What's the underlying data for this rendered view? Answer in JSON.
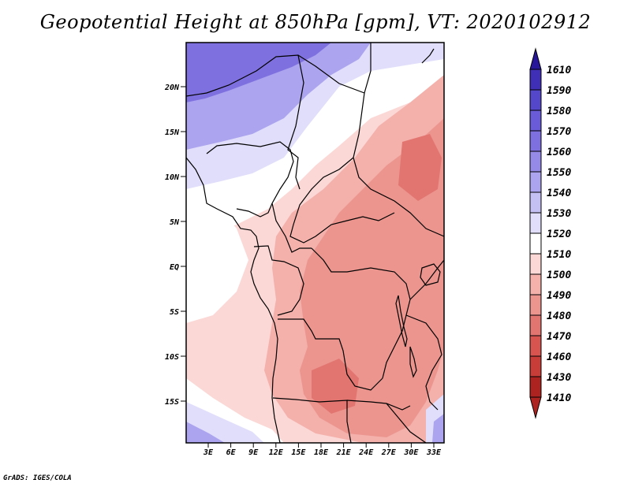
{
  "title": "Geopotential Height at 850hPa [gpm], VT: 2020102912",
  "credit": "GrADS: IGES/COLA",
  "map": {
    "lat_ticks": [
      "20N",
      "15N",
      "10N",
      "5N",
      "EQ",
      "5S",
      "10S",
      "15S"
    ],
    "lon_ticks": [
      "3E",
      "6E",
      "9E",
      "12E",
      "15E",
      "18E",
      "21E",
      "24E",
      "27E",
      "30E",
      "33E"
    ]
  },
  "colorbar": {
    "levels": [
      "1610",
      "1590",
      "1580",
      "1570",
      "1560",
      "1550",
      "1540",
      "1530",
      "1520",
      "1510",
      "1500",
      "1490",
      "1480",
      "1470",
      "1460",
      "1430",
      "1410"
    ],
    "colors": [
      "#28169a",
      "#3f2fb6",
      "#5447c9",
      "#6a5cd8",
      "#7f70e0",
      "#958ae7",
      "#aca4ee",
      "#c5c0f3",
      "#e0defa",
      "#ffffff",
      "#fbd8d6",
      "#f4b0ab",
      "#ec958f",
      "#e27570",
      "#d8544f",
      "#c83d38",
      "#ad231f"
    ]
  },
  "field_colors": {
    "blue_deep": "#7f70e0",
    "blue_mid": "#aca4ee",
    "blue_light": "#e0defa",
    "white": "#ffffff",
    "pink_light": "#fbd8d6",
    "pink": "#f4b0ab",
    "salmon": "#ec958f",
    "red": "#e27570"
  }
}
